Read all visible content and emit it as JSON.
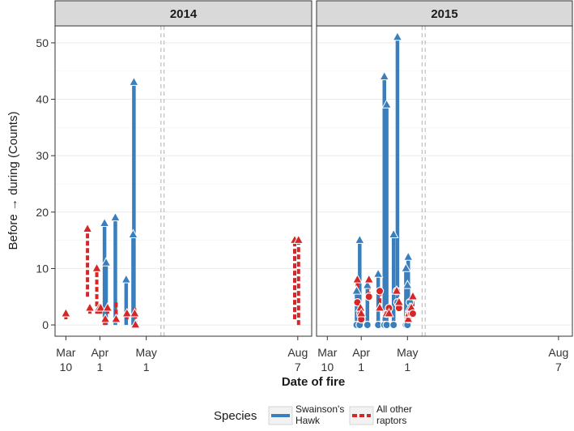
{
  "chart_data": {
    "type": "segment",
    "ylabel": "Before → during (Counts)",
    "xlabel": "Date of fire",
    "ylim": [
      -2,
      53
    ],
    "yticks": [
      0,
      10,
      20,
      30,
      40,
      50
    ],
    "xlim_day_of_year": [
      62,
      228
    ],
    "xticks": [
      {
        "day": 69,
        "line1": "Mar",
        "line2": "10"
      },
      {
        "day": 91,
        "line1": "Apr",
        "line2": "1"
      },
      {
        "day": 121,
        "line1": "May",
        "line2": "1"
      },
      {
        "day": 219,
        "line1": "Aug",
        "line2": "7"
      }
    ],
    "axis_break_days": [
      130.5,
      132.5
    ],
    "grid": true,
    "legend": {
      "title": "Species",
      "position": "bottom",
      "entries": [
        {
          "line1": "Swainson's",
          "line2": "Hawk",
          "color": "#3a7fbd",
          "dash": "solid"
        },
        {
          "line1": "All other",
          "line2": "raptors",
          "color": "#d62728",
          "dash": "dashed"
        }
      ]
    },
    "colors": {
      "hawk": "#3a7fbd",
      "raptors": "#d62728"
    },
    "panels": [
      {
        "title": "2014",
        "segments": [
          {
            "species": "raptors",
            "day": 69,
            "before": 1,
            "during": 2
          },
          {
            "species": "raptors",
            "day": 83,
            "before": 5,
            "during": 17
          },
          {
            "species": "raptors",
            "day": 84.5,
            "before": 2,
            "during": 3
          },
          {
            "species": "raptors",
            "day": 89,
            "before": 2,
            "during": 10
          },
          {
            "species": "raptors",
            "day": 90.5,
            "before": 2,
            "during": 3
          },
          {
            "species": "raptors",
            "day": 91.5,
            "before": 2,
            "during": 3
          },
          {
            "species": "hawk",
            "day": 94,
            "before": 0,
            "during": 18
          },
          {
            "species": "hawk",
            "day": 95,
            "before": 0,
            "during": 11
          },
          {
            "species": "raptors",
            "day": 94.5,
            "before": 0,
            "during": 1
          },
          {
            "species": "raptors",
            "day": 96,
            "before": 2,
            "during": 3
          },
          {
            "species": "hawk",
            "day": 101,
            "before": 0,
            "during": 19
          },
          {
            "species": "raptors",
            "day": 101.5,
            "before": 4,
            "during": 1
          },
          {
            "species": "hawk",
            "day": 108,
            "before": 0,
            "during": 8
          },
          {
            "species": "raptors",
            "day": 108.5,
            "before": 1,
            "during": 2
          },
          {
            "species": "hawk",
            "day": 113,
            "before": 0,
            "during": 43
          },
          {
            "species": "hawk",
            "day": 112.5,
            "before": 0,
            "during": 16
          },
          {
            "species": "raptors",
            "day": 113.5,
            "before": 3,
            "during": 2
          },
          {
            "species": "raptors",
            "day": 114,
            "before": 2,
            "during": 0
          },
          {
            "species": "raptors",
            "day": 217,
            "before": 1,
            "during": 15
          },
          {
            "species": "raptors",
            "day": 219.5,
            "before": 0,
            "during": 15
          }
        ]
      },
      {
        "title": "2015",
        "segments": [
          {
            "species": "hawk",
            "day": 88,
            "before": 0,
            "during": 6
          },
          {
            "species": "raptors",
            "day": 88.5,
            "before": 4,
            "during": 8
          },
          {
            "species": "hawk",
            "day": 90,
            "before": 0,
            "during": 15
          },
          {
            "species": "raptors",
            "day": 90.5,
            "before": 2,
            "during": 3
          },
          {
            "species": "raptors",
            "day": 91,
            "before": 1,
            "during": 2
          },
          {
            "species": "hawk",
            "day": 95,
            "before": 0,
            "during": 7
          },
          {
            "species": "raptors",
            "day": 96,
            "before": 5,
            "during": 8
          },
          {
            "species": "hawk",
            "day": 102,
            "before": 0,
            "during": 9
          },
          {
            "species": "raptors",
            "day": 103,
            "before": 6,
            "during": 3
          },
          {
            "species": "hawk",
            "day": 106,
            "before": 0,
            "during": 44
          },
          {
            "species": "hawk",
            "day": 107.5,
            "before": 0,
            "during": 39
          },
          {
            "species": "raptors",
            "day": 107.5,
            "before": 2,
            "during": 2
          },
          {
            "species": "raptors",
            "day": 109,
            "before": 3,
            "during": 2
          },
          {
            "species": "hawk",
            "day": 112,
            "before": 0,
            "during": 16
          },
          {
            "species": "hawk",
            "day": 114.5,
            "before": 4,
            "during": 51
          },
          {
            "species": "raptors",
            "day": 114,
            "before": 6,
            "during": 6
          },
          {
            "species": "raptors",
            "day": 115.5,
            "before": 3,
            "during": 4
          },
          {
            "species": "hawk",
            "day": 120,
            "before": 0,
            "during": 10
          },
          {
            "species": "hawk",
            "day": 121.5,
            "before": 0,
            "during": 12
          },
          {
            "species": "hawk",
            "day": 121,
            "before": 0,
            "during": 7
          },
          {
            "species": "hawk",
            "day": 122.5,
            "before": 4,
            "during": 3
          },
          {
            "species": "raptors",
            "day": 121.5,
            "before": 1,
            "during": 1
          },
          {
            "species": "raptors",
            "day": 122,
            "before": 2,
            "during": 2
          },
          {
            "species": "raptors",
            "day": 123.5,
            "before": 2,
            "during": 3
          },
          {
            "species": "raptors",
            "day": 124.5,
            "before": 2,
            "during": 5
          }
        ]
      }
    ]
  }
}
